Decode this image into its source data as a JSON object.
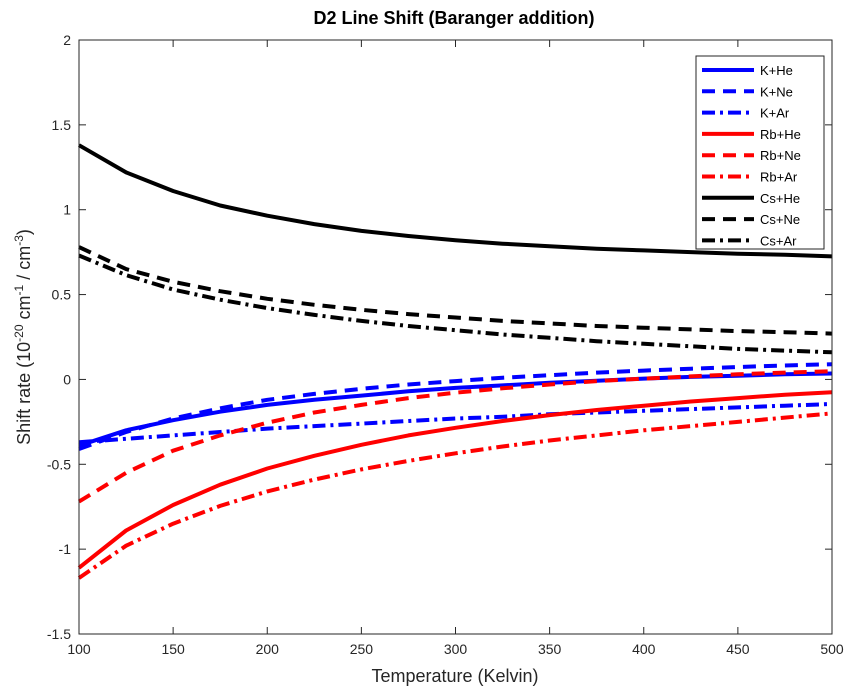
{
  "chart_data": {
    "type": "line",
    "title": "D2 Line Shift (Baranger addition)",
    "xlabel": "Temperature (Kelvin)",
    "ylabel": {
      "base": "Shift rate (10",
      "sup1": "-20",
      "mid": " cm",
      "sup2": "-1",
      "mid2": " / cm",
      "sup3": "-3",
      "end": ")"
    },
    "xlim": [
      100,
      500
    ],
    "ylim": [
      -1.5,
      2
    ],
    "xticks": [
      100,
      150,
      200,
      250,
      300,
      350,
      400,
      450,
      500
    ],
    "yticks": [
      -1.5,
      -1,
      -0.5,
      0,
      0.5,
      1,
      1.5,
      2
    ],
    "xtick_labels": [
      "100",
      "150",
      "200",
      "250",
      "300",
      "350",
      "400",
      "450",
      "500"
    ],
    "ytick_labels": [
      "-1.5",
      "-1",
      "-0.5",
      "0",
      "0.5",
      "1",
      "1.5",
      "2"
    ],
    "grid": false,
    "legend_position": "top-right",
    "x": [
      100,
      125,
      150,
      175,
      200,
      225,
      250,
      275,
      300,
      325,
      350,
      375,
      400,
      425,
      450,
      475,
      500
    ],
    "series": [
      {
        "name": "K+He",
        "color": "#0000ff",
        "style": "solid",
        "values": [
          -0.39,
          -0.3,
          -0.24,
          -0.19,
          -0.15,
          -0.12,
          -0.095,
          -0.07,
          -0.05,
          -0.035,
          -0.02,
          -0.008,
          0.005,
          0.015,
          0.022,
          0.03,
          0.035
        ]
      },
      {
        "name": "K+Ne",
        "color": "#0000ff",
        "style": "dash",
        "values": [
          -0.41,
          -0.31,
          -0.23,
          -0.17,
          -0.12,
          -0.085,
          -0.055,
          -0.03,
          -0.01,
          0.01,
          0.025,
          0.04,
          0.052,
          0.063,
          0.073,
          0.082,
          0.09
        ]
      },
      {
        "name": "K+Ar",
        "color": "#0000ff",
        "style": "dashdot",
        "values": [
          -0.37,
          -0.35,
          -0.33,
          -0.31,
          -0.29,
          -0.275,
          -0.26,
          -0.245,
          -0.23,
          -0.22,
          -0.205,
          -0.195,
          -0.185,
          -0.175,
          -0.165,
          -0.155,
          -0.145
        ]
      },
      {
        "name": "Rb+He",
        "color": "#ff0000",
        "style": "solid",
        "values": [
          -1.11,
          -0.89,
          -0.74,
          -0.62,
          -0.525,
          -0.45,
          -0.385,
          -0.33,
          -0.285,
          -0.245,
          -0.21,
          -0.18,
          -0.155,
          -0.13,
          -0.11,
          -0.09,
          -0.075
        ]
      },
      {
        "name": "Rb+Ne",
        "color": "#ff0000",
        "style": "dash",
        "values": [
          -0.72,
          -0.55,
          -0.42,
          -0.33,
          -0.255,
          -0.195,
          -0.15,
          -0.11,
          -0.078,
          -0.052,
          -0.03,
          -0.01,
          0.005,
          0.018,
          0.03,
          0.04,
          0.048
        ]
      },
      {
        "name": "Rb+Ar",
        "color": "#ff0000",
        "style": "dashdot",
        "values": [
          -1.17,
          -0.98,
          -0.85,
          -0.745,
          -0.66,
          -0.59,
          -0.53,
          -0.48,
          -0.435,
          -0.395,
          -0.36,
          -0.33,
          -0.3,
          -0.275,
          -0.25,
          -0.225,
          -0.2
        ]
      },
      {
        "name": "Cs+He",
        "color": "#000000",
        "style": "solid",
        "values": [
          1.38,
          1.22,
          1.11,
          1.025,
          0.965,
          0.915,
          0.875,
          0.845,
          0.82,
          0.8,
          0.785,
          0.77,
          0.76,
          0.75,
          0.74,
          0.735,
          0.725
        ]
      },
      {
        "name": "Cs+Ne",
        "color": "#000000",
        "style": "dash",
        "values": [
          0.78,
          0.65,
          0.575,
          0.52,
          0.475,
          0.44,
          0.41,
          0.385,
          0.365,
          0.345,
          0.33,
          0.315,
          0.305,
          0.295,
          0.285,
          0.278,
          0.27
        ]
      },
      {
        "name": "Cs+Ar",
        "color": "#000000",
        "style": "dashdot",
        "values": [
          0.73,
          0.615,
          0.53,
          0.47,
          0.42,
          0.38,
          0.345,
          0.315,
          0.29,
          0.265,
          0.245,
          0.225,
          0.21,
          0.195,
          0.18,
          0.17,
          0.16
        ]
      }
    ]
  }
}
